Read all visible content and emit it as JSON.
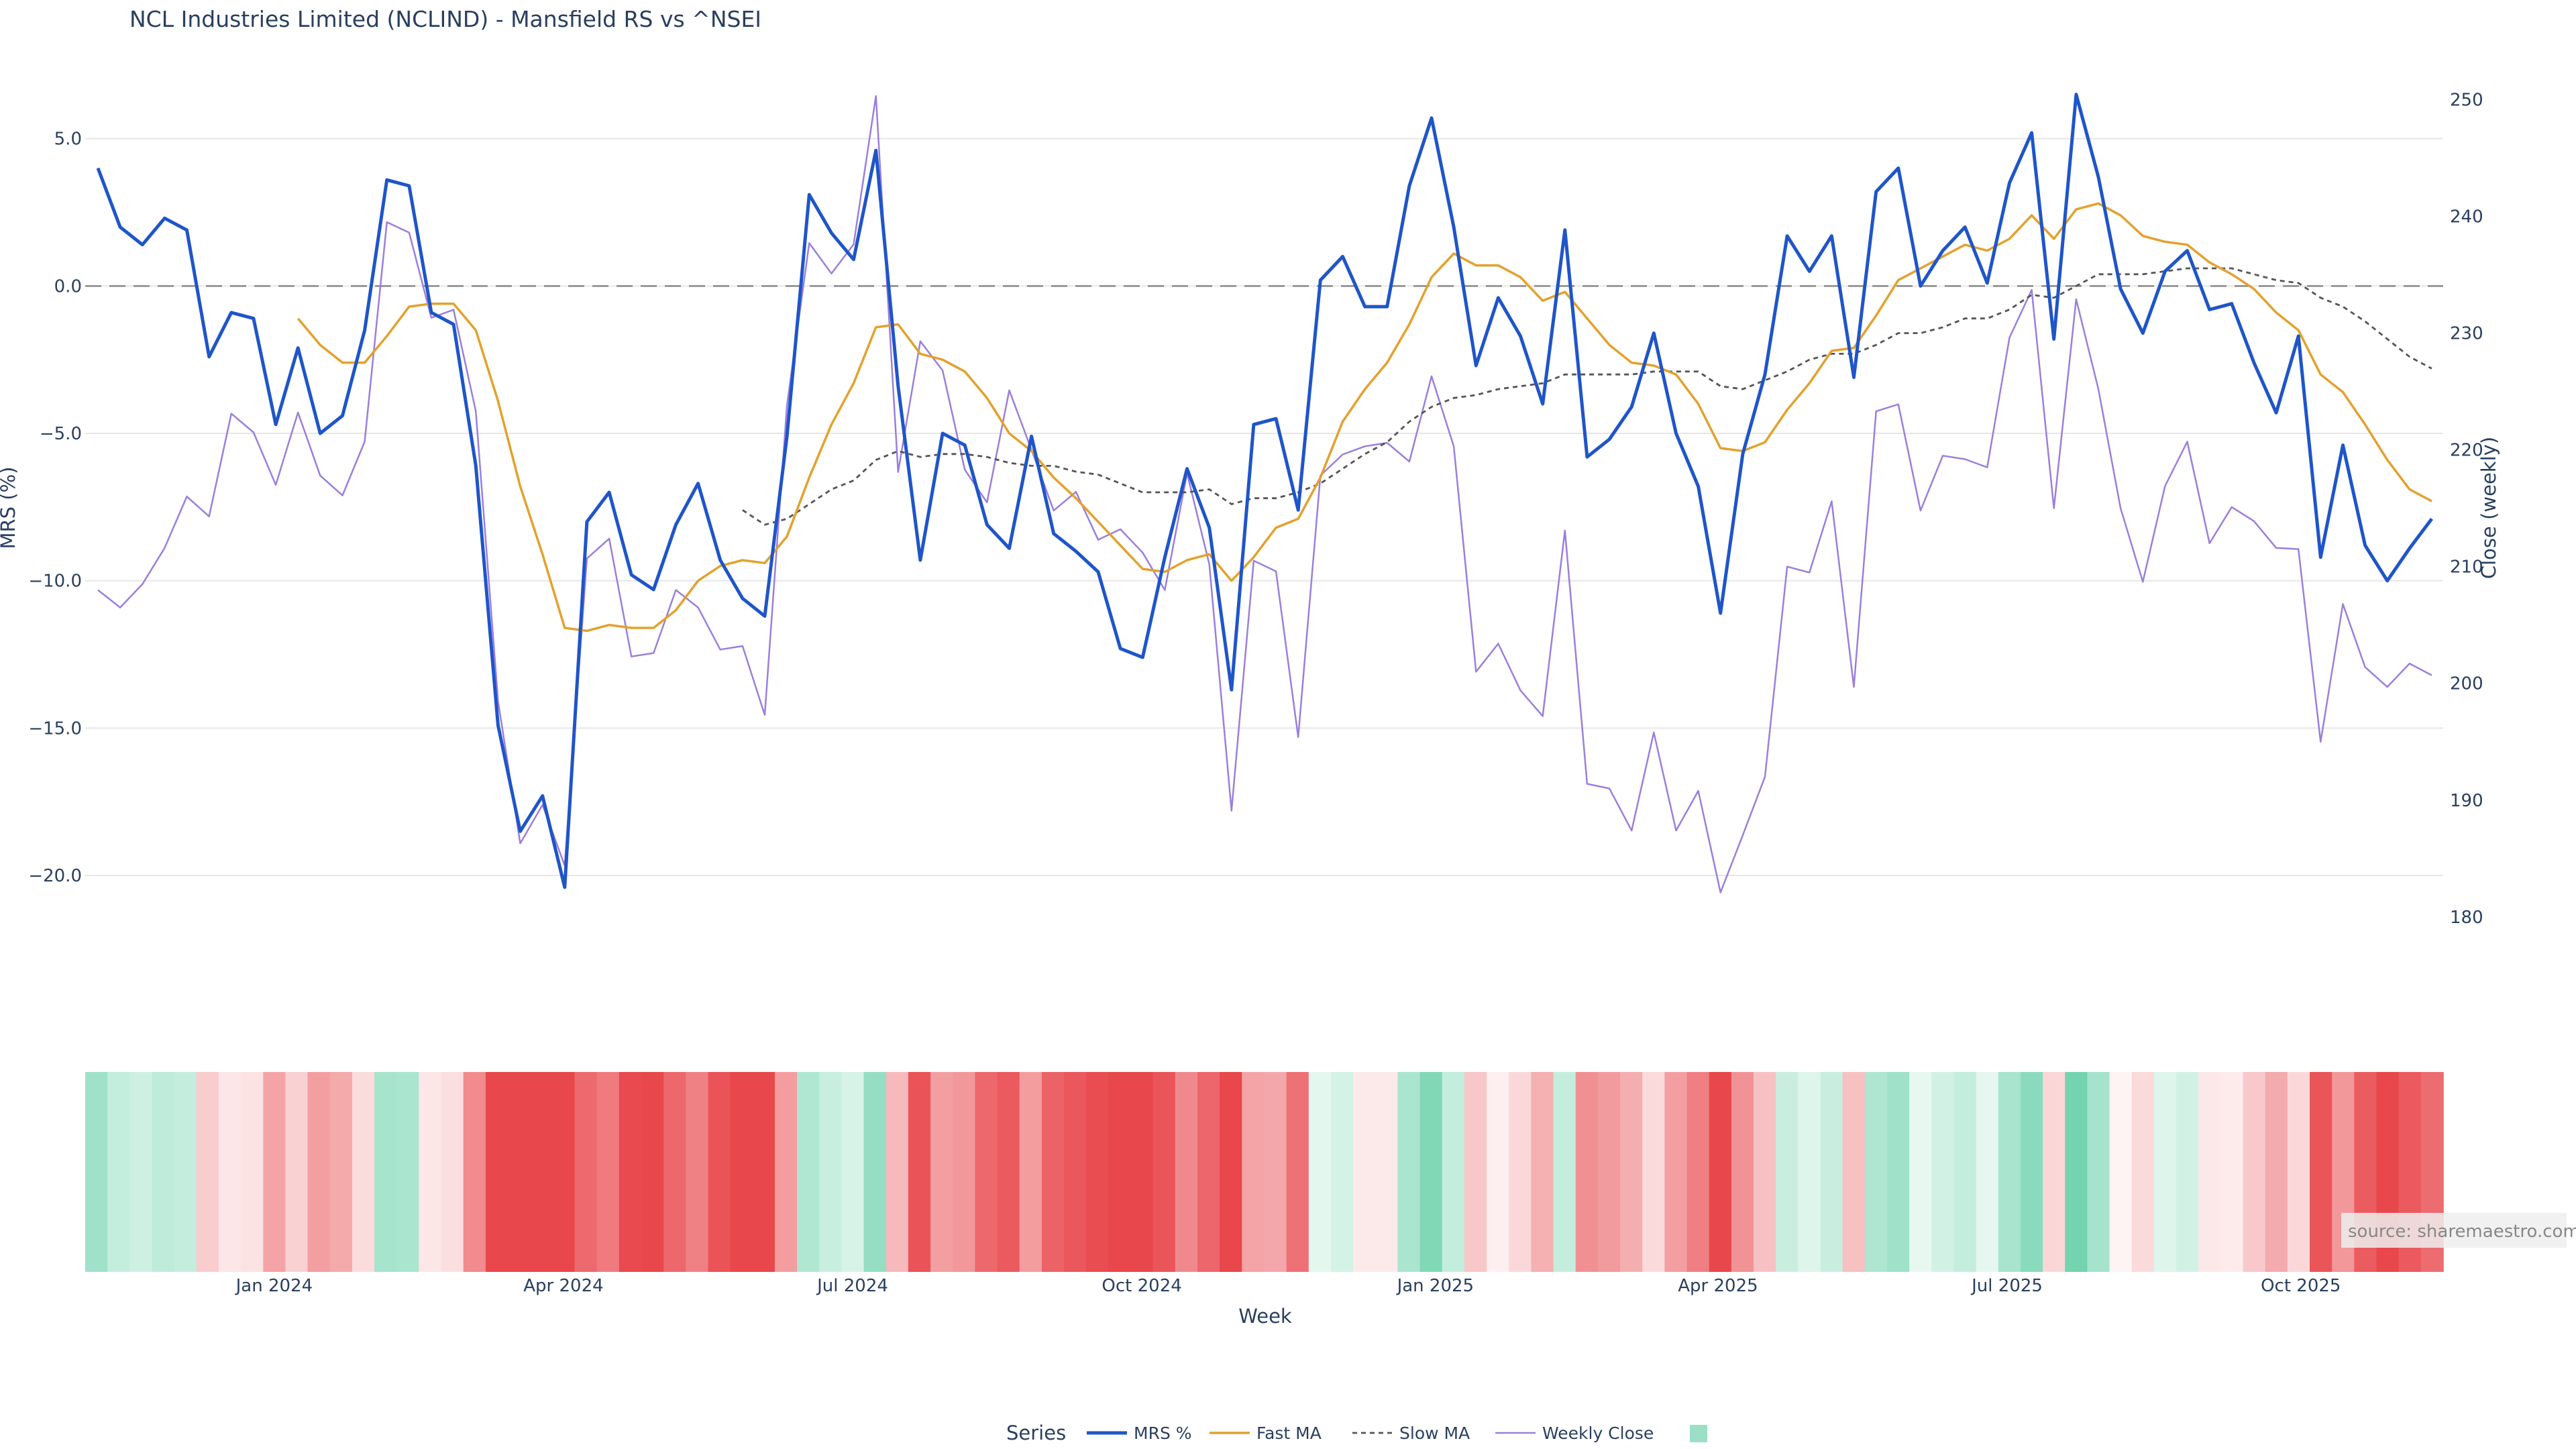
{
  "chart_data": {
    "type": "line",
    "title": "NCL Industries Limited (NCLIND) - Mansfield RS vs ^NSEI",
    "xlabel": "Week",
    "ylabel": "MRS (%)",
    "y2label": "Close (weekly)",
    "source": "source: sharemaestro.com",
    "legend_title": "Series",
    "ylim": [
      -24.3,
      7.2
    ],
    "y2lim": [
      172.7,
      252.2
    ],
    "y_ticks": [
      {
        "value": 5,
        "label": "5.0"
      },
      {
        "value": 0,
        "label": "0.0"
      },
      {
        "value": -5,
        "label": "−5.0"
      },
      {
        "value": -10,
        "label": "−10.0"
      },
      {
        "value": -15,
        "label": "−15.0"
      },
      {
        "value": -20,
        "label": "−20.0"
      }
    ],
    "y2_ticks": [
      180,
      190,
      200,
      210,
      220,
      230,
      240,
      250
    ],
    "x_ticks": [
      {
        "index": 8.5,
        "label": "Jan 2024"
      },
      {
        "index": 21.5,
        "label": "Apr 2024"
      },
      {
        "index": 34.5,
        "label": "Jul 2024"
      },
      {
        "index": 47.5,
        "label": "Oct 2024"
      },
      {
        "index": 60.7,
        "label": "Jan 2025"
      },
      {
        "index": 73.4,
        "label": "Apr 2025"
      },
      {
        "index": 86.4,
        "label": "Jul 2025"
      },
      {
        "index": 99.6,
        "label": "Oct 2025"
      }
    ],
    "zero_line": 0,
    "series": [
      {
        "name": "MRS %",
        "color": "#1f55c8",
        "axis": "y1",
        "width": 5,
        "dash": "",
        "values": [
          4.0,
          2.0,
          1.4,
          2.3,
          1.9,
          -2.4,
          -0.9,
          -1.1,
          -4.7,
          -2.1,
          -5.0,
          -4.4,
          -1.5,
          3.6,
          3.4,
          -0.9,
          -1.3,
          -6.1,
          -14.9,
          -18.5,
          -17.3,
          -20.4,
          -8.0,
          -7.0,
          -9.8,
          -10.3,
          -8.1,
          -6.7,
          -9.3,
          -10.6,
          -11.2,
          -5.1,
          3.1,
          1.8,
          0.9,
          4.6,
          -3.4,
          -9.3,
          -5.0,
          -5.4,
          -8.1,
          -8.9,
          -5.1,
          -8.4,
          -9.0,
          -9.7,
          -12.3,
          -12.6,
          -9.2,
          -6.2,
          -8.2,
          -13.7,
          -4.7,
          -4.5,
          -7.6,
          0.2,
          1.0,
          -0.7,
          -0.7,
          3.4,
          5.7,
          2.0,
          -2.7,
          -0.4,
          -1.7,
          -4.0,
          1.9,
          -5.8,
          -5.2,
          -4.1,
          -1.6,
          -5.0,
          -6.8,
          -11.1,
          -5.7,
          -3.0,
          1.7,
          0.5,
          1.7,
          -3.1,
          3.2,
          4.0,
          0.0,
          1.2,
          2.0,
          0.1,
          3.5,
          5.2,
          -1.8,
          6.5,
          3.7,
          -0.1,
          -1.6,
          0.5,
          1.2,
          -0.8,
          -0.6,
          -2.6,
          -4.3,
          -1.7,
          -9.2,
          -5.4,
          -8.8,
          -10.0,
          -8.9,
          -7.9
        ]
      },
      {
        "name": "Fast MA",
        "color": "#e3a12d",
        "axis": "y1",
        "width": 3.5,
        "dash": "",
        "values": [
          null,
          null,
          null,
          null,
          null,
          null,
          null,
          null,
          null,
          -1.1,
          -2.0,
          -2.6,
          -2.6,
          -1.7,
          -0.7,
          -0.6,
          -0.6,
          -1.5,
          -3.9,
          -6.8,
          -9.1,
          -11.6,
          -11.7,
          -11.5,
          -11.6,
          -11.6,
          -11.0,
          -10.0,
          -9.5,
          -9.3,
          -9.4,
          -8.5,
          -6.5,
          -4.7,
          -3.3,
          -1.4,
          -1.3,
          -2.3,
          -2.5,
          -2.9,
          -3.8,
          -5.0,
          -5.6,
          -6.5,
          -7.2,
          -8.0,
          -8.8,
          -9.6,
          -9.7,
          -9.3,
          -9.1,
          -10.0,
          -9.2,
          -8.2,
          -7.9,
          -6.5,
          -4.6,
          -3.5,
          -2.6,
          -1.3,
          0.3,
          1.1,
          0.7,
          0.7,
          0.3,
          -0.5,
          -0.2,
          -1.1,
          -2.0,
          -2.6,
          -2.7,
          -3.0,
          -4.0,
          -5.5,
          -5.6,
          -5.3,
          -4.2,
          -3.3,
          -2.2,
          -2.1,
          -1.0,
          0.2,
          0.6,
          1.0,
          1.4,
          1.2,
          1.6,
          2.4,
          1.6,
          2.6,
          2.8,
          2.4,
          1.7,
          1.5,
          1.4,
          0.8,
          0.4,
          -0.1,
          -0.9,
          -1.5,
          -3.0,
          -3.6,
          -4.7,
          -5.9,
          -6.9,
          -7.3
        ]
      },
      {
        "name": "Slow MA",
        "color": "#555555",
        "axis": "y1",
        "width": 2.8,
        "dash": "7,6",
        "values": [
          null,
          null,
          null,
          null,
          null,
          null,
          null,
          null,
          null,
          null,
          null,
          null,
          null,
          null,
          null,
          null,
          null,
          null,
          null,
          null,
          null,
          null,
          null,
          null,
          null,
          null,
          null,
          null,
          null,
          -7.6,
          -8.1,
          -7.9,
          -7.4,
          -6.9,
          -6.6,
          -5.9,
          -5.6,
          -5.8,
          -5.7,
          -5.7,
          -5.8,
          -6.0,
          -6.1,
          -6.1,
          -6.3,
          -6.4,
          -6.7,
          -7.0,
          -7.0,
          -7.0,
          -6.9,
          -7.4,
          -7.2,
          -7.2,
          -7.0,
          -6.7,
          -6.2,
          -5.7,
          -5.3,
          -4.6,
          -4.1,
          -3.8,
          -3.7,
          -3.5,
          -3.4,
          -3.3,
          -3.0,
          -3.0,
          -3.0,
          -3.0,
          -2.9,
          -2.9,
          -2.9,
          -3.4,
          -3.5,
          -3.2,
          -2.9,
          -2.5,
          -2.3,
          -2.3,
          -2.0,
          -1.6,
          -1.6,
          -1.4,
          -1.1,
          -1.1,
          -0.8,
          -0.3,
          -0.4,
          0.0,
          0.4,
          0.4,
          0.4,
          0.5,
          0.6,
          0.6,
          0.6,
          0.4,
          0.2,
          0.1,
          -0.4,
          -0.7,
          -1.2,
          -1.8,
          -2.4,
          -2.8
        ]
      },
      {
        "name": "Weekly Close",
        "color": "#9b7fdc",
        "axis": "y2",
        "width": 2.5,
        "dash": "",
        "values": [
          208.0,
          206.5,
          208.5,
          211.6,
          216.0,
          214.3,
          223.1,
          221.5,
          217.0,
          223.2,
          217.8,
          216.1,
          220.7,
          239.5,
          238.6,
          231.3,
          232.0,
          223.3,
          198.5,
          186.3,
          189.6,
          184.4,
          210.7,
          212.4,
          202.3,
          202.6,
          208.0,
          206.5,
          202.9,
          203.2,
          197.3,
          223.8,
          237.7,
          235.1,
          237.6,
          250.3,
          218.1,
          229.3,
          226.8,
          218.3,
          215.5,
          225.1,
          220.0,
          214.8,
          216.4,
          212.3,
          213.2,
          211.2,
          208.0,
          218.0,
          210.2,
          189.1,
          210.5,
          209.6,
          195.4,
          217.8,
          219.6,
          220.3,
          220.6,
          219.0,
          226.3,
          220.3,
          201.0,
          203.4,
          199.4,
          197.2,
          213.1,
          191.4,
          191.0,
          187.4,
          195.8,
          187.4,
          190.8,
          182.1,
          187.0,
          192.0,
          210.0,
          209.5,
          215.6,
          199.7,
          223.3,
          223.9,
          214.8,
          219.5,
          219.2,
          218.5,
          229.6,
          233.7,
          215.0,
          232.9,
          225.2,
          215.0,
          208.7,
          216.9,
          220.7,
          212.0,
          215.1,
          213.9,
          211.6,
          211.5,
          195.0,
          206.8,
          201.4,
          199.7,
          201.7,
          200.7
        ]
      }
    ],
    "heatmap": {
      "colorscale": [
        [
          -10,
          "#e8474c"
        ],
        [
          0,
          "#ffffff"
        ],
        [
          10,
          "#38c28e"
        ]
      ],
      "values": [
        4.0,
        2.0,
        1.4,
        2.3,
        1.9,
        -2.4,
        -0.9,
        -1.1,
        -4.7,
        -2.1,
        -5.0,
        -4.4,
        -1.5,
        3.6,
        3.4,
        -0.9,
        -1.3,
        -6.1,
        -14.9,
        -18.5,
        -17.3,
        -20.4,
        -8.0,
        -7.0,
        -9.8,
        -10.3,
        -8.1,
        -6.7,
        -9.3,
        -10.6,
        -11.2,
        -5.1,
        3.1,
        1.8,
        0.9,
        4.6,
        -3.4,
        -9.3,
        -5.0,
        -5.4,
        -8.1,
        -8.9,
        -5.1,
        -8.4,
        -9.0,
        -9.7,
        -12.3,
        -12.6,
        -9.2,
        -6.2,
        -8.2,
        -13.7,
        -4.7,
        -4.5,
        -7.6,
        0.2,
        1.0,
        -0.7,
        -0.7,
        3.4,
        5.7,
        2.0,
        -2.7,
        -0.4,
        -1.7,
        -4.0,
        1.9,
        -5.8,
        -5.2,
        -4.1,
        -1.6,
        -5.0,
        -6.8,
        -11.1,
        -5.7,
        -3.0,
        1.7,
        0.5,
        1.7,
        -3.1,
        3.2,
        4.0,
        0.0,
        1.2,
        2.0,
        0.1,
        3.5,
        5.2,
        -1.8,
        6.5,
        3.7,
        -0.1,
        -1.6,
        0.5,
        1.2,
        -0.8,
        -0.6,
        -2.6,
        -4.3,
        -1.7,
        -9.2,
        -5.4,
        -8.8,
        -10.0,
        -8.9,
        -7.9
      ]
    }
  }
}
